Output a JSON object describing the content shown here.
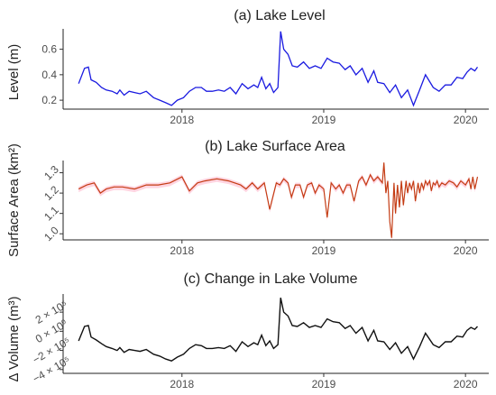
{
  "chart_data": [
    {
      "type": "line",
      "title": "(a) Lake Level",
      "ylabel": "Level (m)",
      "xlabel": "",
      "x_ticks": [
        "2018",
        "2019",
        "2020"
      ],
      "y_ticks": [
        "0.2",
        "0.4",
        "0.6"
      ],
      "xlim": [
        "2017-03-01",
        "2020-03-01"
      ],
      "ylim": [
        0.13,
        0.76
      ],
      "line_color": "#1a1ae0",
      "grid": false,
      "x": [
        "2017-04-10",
        "2017-04-25",
        "2017-05-05",
        "2017-05-12",
        "2017-05-25",
        "2017-06-08",
        "2017-06-20",
        "2017-07-05",
        "2017-07-18",
        "2017-07-25",
        "2017-08-05",
        "2017-08-18",
        "2017-09-01",
        "2017-09-15",
        "2017-10-01",
        "2017-10-20",
        "2017-11-05",
        "2017-11-20",
        "2017-12-05",
        "2017-12-20",
        "2018-01-05",
        "2018-01-20",
        "2018-02-05",
        "2018-02-20",
        "2018-03-05",
        "2018-03-20",
        "2018-04-05",
        "2018-04-20",
        "2018-05-05",
        "2018-05-20",
        "2018-06-05",
        "2018-06-20",
        "2018-07-05",
        "2018-07-15",
        "2018-07-25",
        "2018-08-05",
        "2018-08-15",
        "2018-08-25",
        "2018-09-05",
        "2018-09-12",
        "2018-09-20",
        "2018-10-01",
        "2018-10-12",
        "2018-10-25",
        "2018-11-10",
        "2018-11-25",
        "2018-12-10",
        "2018-12-25",
        "2019-01-10",
        "2019-01-25",
        "2019-02-10",
        "2019-02-25",
        "2019-03-10",
        "2019-03-25",
        "2019-04-10",
        "2019-04-25",
        "2019-05-10",
        "2019-05-20",
        "2019-06-05",
        "2019-06-20",
        "2019-07-05",
        "2019-07-20",
        "2019-08-05",
        "2019-08-20",
        "2019-09-05",
        "2019-09-20",
        "2019-10-10",
        "2019-10-25",
        "2019-11-10",
        "2019-11-25",
        "2019-12-10",
        "2019-12-25",
        "2020-01-05",
        "2020-01-15",
        "2020-01-25",
        "2020-02-01"
      ],
      "values": [
        0.33,
        0.45,
        0.46,
        0.36,
        0.34,
        0.3,
        0.28,
        0.27,
        0.25,
        0.28,
        0.24,
        0.27,
        0.26,
        0.25,
        0.27,
        0.22,
        0.2,
        0.18,
        0.16,
        0.2,
        0.22,
        0.27,
        0.3,
        0.3,
        0.27,
        0.27,
        0.28,
        0.27,
        0.3,
        0.25,
        0.33,
        0.29,
        0.32,
        0.3,
        0.38,
        0.29,
        0.33,
        0.26,
        0.3,
        0.74,
        0.6,
        0.56,
        0.47,
        0.46,
        0.5,
        0.45,
        0.47,
        0.45,
        0.53,
        0.5,
        0.49,
        0.44,
        0.47,
        0.4,
        0.45,
        0.34,
        0.43,
        0.34,
        0.33,
        0.26,
        0.32,
        0.22,
        0.28,
        0.16,
        0.28,
        0.4,
        0.3,
        0.27,
        0.32,
        0.32,
        0.38,
        0.37,
        0.42,
        0.45,
        0.43,
        0.46
      ]
    },
    {
      "type": "line",
      "title": "(b) Lake Surface Area",
      "ylabel": "Surface Area (km²)",
      "xlabel": "",
      "x_ticks": [
        "2018",
        "2019",
        "2020"
      ],
      "y_ticks": [
        "1.0",
        "1.1",
        "1.2",
        "1.3"
      ],
      "xlim": [
        "2017-03-01",
        "2020-03-01"
      ],
      "ylim": [
        0.97,
        1.36
      ],
      "line_color": "#c43c14",
      "band_color": "#ffb3c8",
      "grid": false,
      "x": [
        "2017-04-10",
        "2017-05-01",
        "2017-05-20",
        "2017-06-05",
        "2017-06-20",
        "2017-07-10",
        "2017-08-01",
        "2017-09-01",
        "2017-10-01",
        "2017-11-01",
        "2017-12-01",
        "2018-01-01",
        "2018-01-20",
        "2018-02-10",
        "2018-03-01",
        "2018-04-01",
        "2018-05-01",
        "2018-06-01",
        "2018-06-15",
        "2018-07-01",
        "2018-07-15",
        "2018-08-01",
        "2018-08-15",
        "2018-09-01",
        "2018-09-10",
        "2018-09-20",
        "2018-10-01",
        "2018-10-10",
        "2018-10-20",
        "2018-11-01",
        "2018-11-10",
        "2018-11-20",
        "2018-12-01",
        "2018-12-10",
        "2018-12-20",
        "2019-01-01",
        "2019-01-10",
        "2019-01-20",
        "2019-02-01",
        "2019-02-10",
        "2019-02-20",
        "2019-03-01",
        "2019-03-10",
        "2019-03-20",
        "2019-04-01",
        "2019-04-10",
        "2019-04-20",
        "2019-05-01",
        "2019-05-10",
        "2019-05-20",
        "2019-06-01",
        "2019-06-05",
        "2019-06-10",
        "2019-06-15",
        "2019-06-20",
        "2019-06-25",
        "2019-07-01",
        "2019-07-05",
        "2019-07-10",
        "2019-07-15",
        "2019-07-20",
        "2019-07-25",
        "2019-08-01",
        "2019-08-05",
        "2019-08-10",
        "2019-08-15",
        "2019-08-20",
        "2019-08-25",
        "2019-09-01",
        "2019-09-05",
        "2019-09-10",
        "2019-09-15",
        "2019-09-20",
        "2019-09-25",
        "2019-10-01",
        "2019-10-05",
        "2019-10-10",
        "2019-10-15",
        "2019-10-20",
        "2019-10-25",
        "2019-11-01",
        "2019-11-10",
        "2019-11-20",
        "2019-12-01",
        "2019-12-10",
        "2019-12-20",
        "2020-01-01",
        "2020-01-10",
        "2020-01-15",
        "2020-01-20",
        "2020-01-25",
        "2020-02-01"
      ],
      "values": [
        1.22,
        1.24,
        1.25,
        1.2,
        1.22,
        1.23,
        1.23,
        1.22,
        1.24,
        1.24,
        1.25,
        1.28,
        1.21,
        1.25,
        1.26,
        1.27,
        1.26,
        1.24,
        1.22,
        1.25,
        1.22,
        1.25,
        1.12,
        1.25,
        1.24,
        1.27,
        1.25,
        1.18,
        1.24,
        1.24,
        1.18,
        1.24,
        1.25,
        1.2,
        1.24,
        1.22,
        1.08,
        1.25,
        1.22,
        1.24,
        1.2,
        1.24,
        1.24,
        1.16,
        1.26,
        1.28,
        1.24,
        1.29,
        1.26,
        1.28,
        1.25,
        1.35,
        1.2,
        1.26,
        1.06,
        0.98,
        1.25,
        1.1,
        1.24,
        1.13,
        1.26,
        1.14,
        1.26,
        1.2,
        1.25,
        1.22,
        1.26,
        1.16,
        1.25,
        1.2,
        1.25,
        1.22,
        1.26,
        1.24,
        1.26,
        1.21,
        1.25,
        1.24,
        1.26,
        1.23,
        1.25,
        1.24,
        1.26,
        1.25,
        1.23,
        1.26,
        1.24,
        1.27,
        1.22,
        1.28,
        1.22,
        1.28
      ]
    },
    {
      "type": "line",
      "title": "(c) Change in Lake Volume",
      "ylabel": "Δ Volume (m³)",
      "xlabel": "",
      "x_ticks": [
        "2018",
        "2019",
        "2020"
      ],
      "y_ticks": [
        "−4 × 10⁵",
        "−2 × 10⁵",
        "0 × 10⁰",
        "2 × 10⁵"
      ],
      "xlim": [
        "2017-03-01",
        "2020-03-01"
      ],
      "ylim": [
        -440000,
        390000
      ],
      "line_color": "#111111",
      "grid": false,
      "x": [
        "2017-04-10",
        "2017-04-25",
        "2017-05-05",
        "2017-05-12",
        "2017-05-25",
        "2017-06-08",
        "2017-06-20",
        "2017-07-05",
        "2017-07-18",
        "2017-07-25",
        "2017-08-05",
        "2017-08-18",
        "2017-09-01",
        "2017-09-15",
        "2017-10-01",
        "2017-10-20",
        "2017-11-05",
        "2017-11-20",
        "2017-12-05",
        "2017-12-20",
        "2018-01-05",
        "2018-01-20",
        "2018-02-05",
        "2018-02-20",
        "2018-03-05",
        "2018-03-20",
        "2018-04-05",
        "2018-04-20",
        "2018-05-05",
        "2018-05-20",
        "2018-06-05",
        "2018-06-20",
        "2018-07-05",
        "2018-07-15",
        "2018-07-25",
        "2018-08-05",
        "2018-08-15",
        "2018-08-25",
        "2018-09-05",
        "2018-09-12",
        "2018-09-20",
        "2018-10-01",
        "2018-10-12",
        "2018-10-25",
        "2018-11-10",
        "2018-11-25",
        "2018-12-10",
        "2018-12-25",
        "2019-01-10",
        "2019-01-25",
        "2019-02-10",
        "2019-02-25",
        "2019-03-10",
        "2019-03-25",
        "2019-04-10",
        "2019-04-25",
        "2019-05-10",
        "2019-05-20",
        "2019-06-05",
        "2019-06-20",
        "2019-07-05",
        "2019-07-20",
        "2019-08-05",
        "2019-08-20",
        "2019-09-05",
        "2019-09-20",
        "2019-10-10",
        "2019-10-25",
        "2019-11-10",
        "2019-11-25",
        "2019-12-10",
        "2019-12-25",
        "2020-01-05",
        "2020-01-15",
        "2020-01-25",
        "2020-02-01"
      ],
      "values": [
        -100000,
        50000,
        60000,
        -60000,
        -90000,
        -130000,
        -160000,
        -180000,
        -200000,
        -170000,
        -220000,
        -190000,
        -200000,
        -210000,
        -190000,
        -240000,
        -260000,
        -290000,
        -310000,
        -270000,
        -240000,
        -180000,
        -140000,
        -150000,
        -180000,
        -180000,
        -170000,
        -180000,
        -150000,
        -210000,
        -110000,
        -160000,
        -120000,
        -140000,
        -40000,
        -150000,
        -100000,
        -180000,
        -140000,
        350000,
        200000,
        160000,
        60000,
        50000,
        90000,
        40000,
        60000,
        40000,
        130000,
        100000,
        90000,
        30000,
        60000,
        -20000,
        40000,
        -100000,
        10000,
        -100000,
        -110000,
        -190000,
        -120000,
        -230000,
        -160000,
        -290000,
        -160000,
        -20000,
        -140000,
        -170000,
        -110000,
        -110000,
        -50000,
        -60000,
        10000,
        40000,
        20000,
        50000
      ]
    }
  ]
}
